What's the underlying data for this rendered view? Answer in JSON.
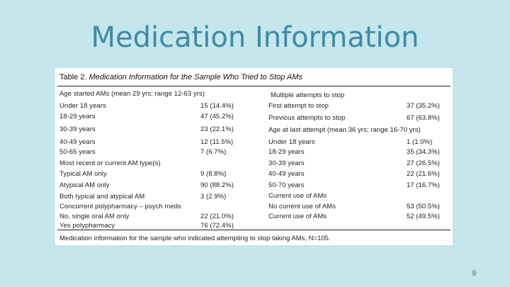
{
  "slide": {
    "title": "Medication Information",
    "page_number": "9"
  },
  "table": {
    "caption_prefix": "Table 2.",
    "caption_title": "Medication Information for the Sample Who Tried to Stop AMs",
    "left_rows": [
      {
        "label": "Age started AMs (mean 29 yrs; range 12-63 yrs)",
        "value": ""
      },
      {
        "label": "Under 18 years",
        "value": "15 (14.4%)"
      },
      {
        "label": "18-29 years",
        "value": "47 (45.2%)"
      },
      {
        "label": "30-39 years",
        "value": "23 (22.1%)"
      },
      {
        "label": "40-49 years",
        "value": "12 (11.5%)"
      },
      {
        "label": "50-65 years",
        "value": "7 (6.7%)"
      },
      {
        "label": "Most recent or current AM type(s)",
        "value": ""
      },
      {
        "label": "Typical AM only",
        "value": "9 (8.8%)"
      },
      {
        "label": "Atypical AM only",
        "value": "90 (88.2%)"
      },
      {
        "label": "Both typical and atypical AM",
        "value": "3 (2.9%)"
      },
      {
        "label": "Concurrent polypharmacy – psych meds",
        "value": ""
      },
      {
        "label": "No, single oral AM only",
        "value": "22 (21.0%)"
      },
      {
        "label": "Yes polypharmacy",
        "value": "76 (72.4%)"
      }
    ],
    "right_rows": [
      {
        "label": "Multiple attempts to stop",
        "value": ""
      },
      {
        "label": "First attempt to stop",
        "value": "37 (35.2%)"
      },
      {
        "label": "Previous attempts to stop",
        "value": "67 (63.8%)"
      },
      {
        "label": "Age at last attempt (mean 36 yrs; range 16-70 yrs)",
        "value": ""
      },
      {
        "label": "Under 18 years",
        "value": "1 (1.0%)"
      },
      {
        "label": "18-29 years",
        "value": "35 (34.3%)"
      },
      {
        "label": "30-39 years",
        "value": "27 (26.5%)"
      },
      {
        "label": "40-49 years",
        "value": "22 (21.6%)"
      },
      {
        "label": "50-70 years",
        "value": "17 (16.7%)"
      },
      {
        "label": "Current use of AMs",
        "value": ""
      },
      {
        "label": "No current use of AMs",
        "value": "53 (50.5%)"
      },
      {
        "label": "Current use of AMs",
        "value": "52 (49.5%)"
      }
    ],
    "footnote": "Medication information for the sample who indicated attempting to stop taking AMs, N=105."
  }
}
